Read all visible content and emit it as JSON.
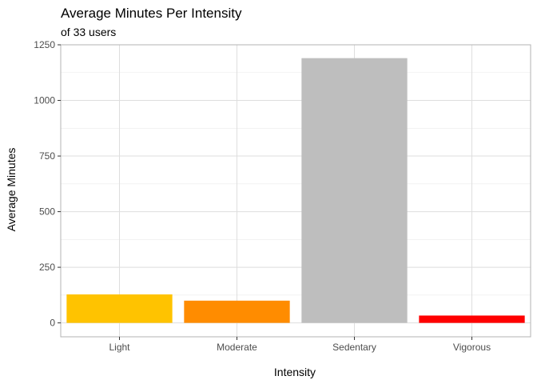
{
  "chart_data": {
    "type": "bar",
    "title": "Average Minutes Per Intensity",
    "subtitle": "of 33 users",
    "xlabel": "Intensity",
    "ylabel": "Average Minutes",
    "categories": [
      "Light",
      "Moderate",
      "Sedentary",
      "Vigorous"
    ],
    "values": [
      128,
      100,
      1190,
      33
    ],
    "colors": [
      "#FFC300",
      "#FF8C00",
      "#BEBEBE",
      "#FF0000"
    ],
    "ylim": [
      -62.5,
      1250
    ],
    "yticks": [
      0,
      250,
      500,
      750,
      1000,
      1250
    ],
    "ytick_labels": [
      "0",
      "250",
      "500",
      "750",
      "1000",
      "1250"
    ],
    "grid": true,
    "legend": "none"
  }
}
